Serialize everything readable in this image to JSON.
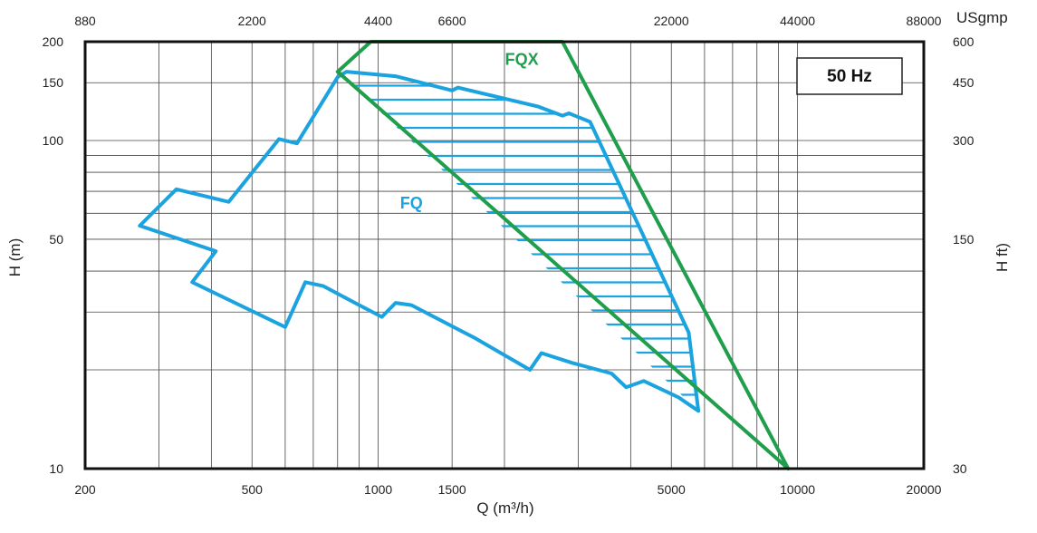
{
  "chart_data": {
    "type": "area",
    "title": "",
    "badge": "50 Hz",
    "xlabel": "Q (m³/h)",
    "ylabel": "H (m)",
    "x2label": "USgmp",
    "y2label": "H ft)",
    "xscale": "log",
    "yscale": "log",
    "xlim": [
      200,
      20000
    ],
    "ylim": [
      10,
      200
    ],
    "grid": true,
    "x_ticks": [
      {
        "value": 200,
        "label": "200"
      },
      {
        "value": 500,
        "label": "500"
      },
      {
        "value": 1000,
        "label": "1000"
      },
      {
        "value": 1500,
        "label": "1500"
      },
      {
        "value": 5000,
        "label": "5000"
      },
      {
        "value": 10000,
        "label": "10000"
      },
      {
        "value": 20000,
        "label": "20000"
      }
    ],
    "x_grid": [
      300,
      400,
      600,
      700,
      800,
      900,
      2000,
      3000,
      4000,
      6000,
      7000,
      8000,
      9000
    ],
    "y_ticks": [
      {
        "value": 10,
        "label": "10"
      },
      {
        "value": 50,
        "label": "50"
      },
      {
        "value": 100,
        "label": "100"
      },
      {
        "value": 150,
        "label": "150"
      },
      {
        "value": 200,
        "label": "200"
      }
    ],
    "y_grid": [
      20,
      30,
      40,
      60,
      70,
      80,
      90
    ],
    "x2_ticks": [
      {
        "value": 200,
        "label": "880"
      },
      {
        "value": 500,
        "label": "2200"
      },
      {
        "value": 1000,
        "label": "4400"
      },
      {
        "value": 1500,
        "label": "6600"
      },
      {
        "value": 5000,
        "label": "22000"
      },
      {
        "value": 10000,
        "label": "44000"
      },
      {
        "value": 20000,
        "label": "88000"
      }
    ],
    "y2_ticks": [
      {
        "value": 10,
        "label": "30"
      },
      {
        "value": 50,
        "label": "150"
      },
      {
        "value": 100,
        "label": "300"
      },
      {
        "value": 150,
        "label": "450"
      },
      {
        "value": 200,
        "label": "600"
      }
    ],
    "series": [
      {
        "name": "FQ",
        "color": "#1ba3e0",
        "label_at": [
          1200,
          62
        ],
        "points": [
          [
            270,
            55
          ],
          [
            330,
            71
          ],
          [
            440,
            65
          ],
          [
            580,
            101
          ],
          [
            640,
            98
          ],
          [
            800,
            156
          ],
          [
            840,
            162
          ],
          [
            1100,
            157
          ],
          [
            1500,
            142
          ],
          [
            1550,
            145
          ],
          [
            2400,
            127
          ],
          [
            2750,
            119
          ],
          [
            2850,
            121
          ],
          [
            3200,
            114
          ],
          [
            5500,
            26
          ],
          [
            5800,
            15
          ],
          [
            5200,
            16.5
          ],
          [
            4300,
            18.5
          ],
          [
            3900,
            17.7
          ],
          [
            3600,
            19.5
          ],
          [
            2900,
            21
          ],
          [
            2450,
            22.5
          ],
          [
            2300,
            20
          ],
          [
            1700,
            25
          ],
          [
            1200,
            31.5
          ],
          [
            1100,
            32
          ],
          [
            1020,
            29
          ],
          [
            880,
            32
          ],
          [
            740,
            36
          ],
          [
            670,
            37
          ],
          [
            600,
            27
          ],
          [
            360,
            37
          ],
          [
            410,
            46
          ],
          [
            270,
            55
          ]
        ]
      },
      {
        "name": "FQX",
        "color": "#1f9e4c",
        "label_at": [
          2200,
          170
        ],
        "points": [
          [
            800,
            162
          ],
          [
            960,
            200
          ],
          [
            2750,
            200
          ],
          [
            9500,
            10
          ],
          [
            800,
            162
          ]
        ]
      }
    ],
    "hatch": {
      "color": "#1ba3e0",
      "region": [
        [
          800,
          162
        ],
        [
          1100,
          157
        ],
        [
          1500,
          142
        ],
        [
          1550,
          145
        ],
        [
          2400,
          127
        ],
        [
          2750,
          119
        ],
        [
          2850,
          121
        ],
        [
          3200,
          114
        ],
        [
          5500,
          26
        ],
        [
          5800,
          15
        ]
      ]
    }
  }
}
